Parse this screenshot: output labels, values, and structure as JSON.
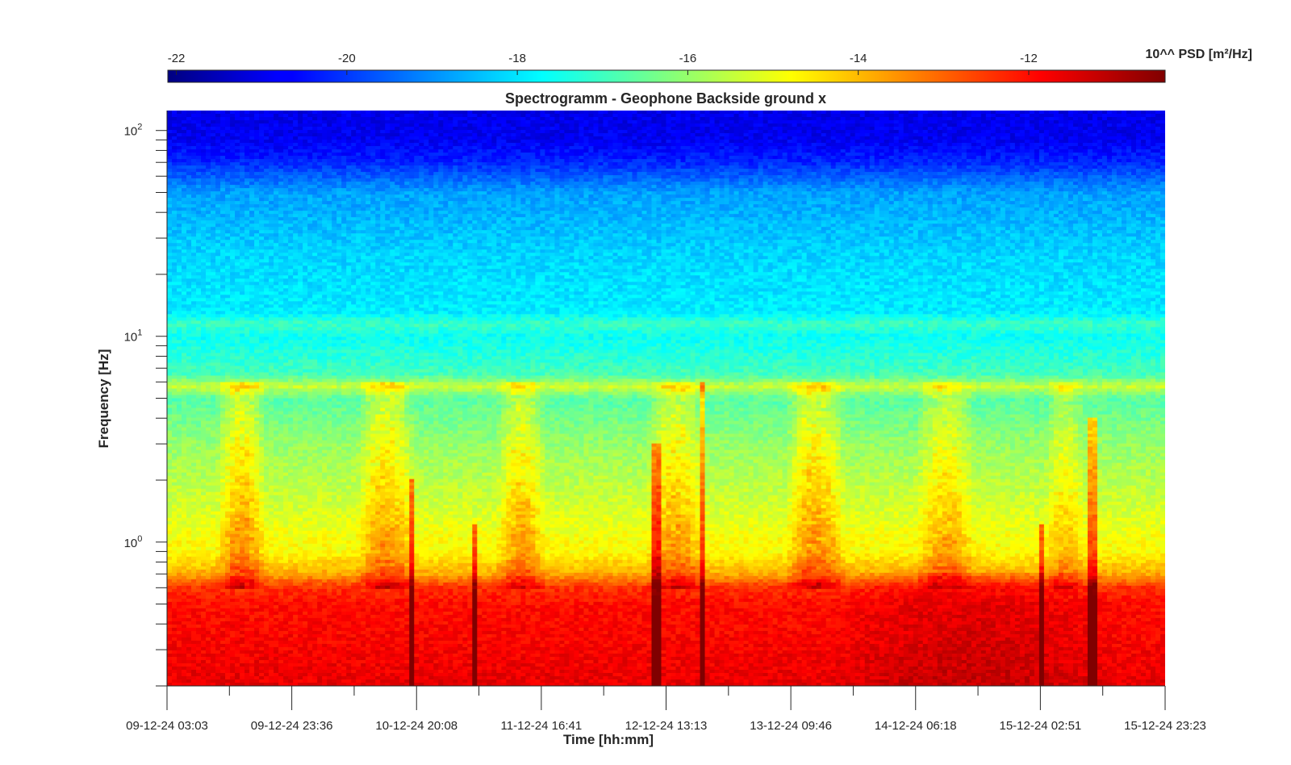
{
  "chart_data": {
    "type": "heatmap",
    "title": "Spectrogramm - Geophone Backside ground x",
    "xlabel": "Time [hh:mm]",
    "ylabel": "Frequency [Hz]",
    "x_ticks": [
      "09-12-24 03:03",
      "09-12-24 23:36",
      "10-12-24 20:08",
      "11-12-24 16:41",
      "12-12-24 13:13",
      "13-12-24 09:46",
      "14-12-24 06:18",
      "15-12-24 02:51",
      "15-12-24 23:23"
    ],
    "xlim": [
      "09-12-24 03:03",
      "15-12-24 23:23"
    ],
    "y_scale": "log",
    "y_ticks": [
      {
        "base": "10",
        "exp": "0",
        "value": 1
      },
      {
        "base": "10",
        "exp": "1",
        "value": 10
      },
      {
        "base": "10",
        "exp": "2",
        "value": 100
      }
    ],
    "ylim": [
      0.2,
      125
    ],
    "colorbar": {
      "label": "10^^ PSD [m²/Hz]",
      "ticks": [
        "-22",
        "-20",
        "-18",
        "-16",
        "-14",
        "-12"
      ],
      "tick_values": [
        -22,
        -20,
        -18,
        -16,
        -14,
        -12
      ],
      "range": [
        -22.1,
        -10.4
      ],
      "colormap": "jet",
      "position": "top"
    },
    "psd_profile": [
      {
        "f": 0.2,
        "v": -11.6
      },
      {
        "f": 0.3,
        "v": -11.8
      },
      {
        "f": 0.5,
        "v": -12.0
      },
      {
        "f": 0.6,
        "v": -12.4
      },
      {
        "f": 0.7,
        "v": -13.8
      },
      {
        "f": 0.9,
        "v": -14.8
      },
      {
        "f": 1.0,
        "v": -14.8
      },
      {
        "f": 1.5,
        "v": -15.3
      },
      {
        "f": 3.0,
        "v": -16.0
      },
      {
        "f": 5.0,
        "v": -16.7
      },
      {
        "f": 5.7,
        "v": -15.4
      },
      {
        "f": 6.5,
        "v": -16.9
      },
      {
        "f": 10.0,
        "v": -17.6
      },
      {
        "f": 11.5,
        "v": -17.0
      },
      {
        "f": 13.0,
        "v": -17.9
      },
      {
        "f": 25.0,
        "v": -18.2
      },
      {
        "f": 50.0,
        "v": -18.8
      },
      {
        "f": 70.0,
        "v": -20.2
      },
      {
        "f": 90.0,
        "v": -20.8
      },
      {
        "f": 125.0,
        "v": -20.9
      }
    ],
    "activity_periods": [
      {
        "start": 0.05,
        "end": 0.1,
        "delta": 1.6
      },
      {
        "start": 0.19,
        "end": 0.25,
        "delta": 1.5
      },
      {
        "start": 0.33,
        "end": 0.38,
        "delta": 1.4
      },
      {
        "start": 0.48,
        "end": 0.54,
        "delta": 1.5
      },
      {
        "start": 0.62,
        "end": 0.68,
        "delta": 1.6
      },
      {
        "start": 0.75,
        "end": 0.81,
        "delta": 1.3
      },
      {
        "start": 0.88,
        "end": 0.92,
        "delta": 1.0
      }
    ],
    "transients": [
      {
        "t": 0.245,
        "fmax": 2.0
      },
      {
        "t": 0.308,
        "fmax": 1.2
      },
      {
        "t": 0.49,
        "fmax": 3.0
      },
      {
        "t": 0.535,
        "fmax": 6.0
      },
      {
        "t": 0.875,
        "fmax": 1.2
      },
      {
        "t": 0.927,
        "fmax": 4.0
      }
    ]
  }
}
